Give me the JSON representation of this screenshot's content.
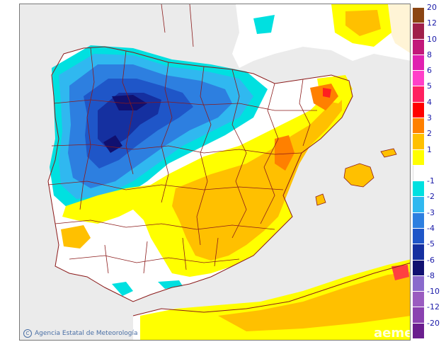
{
  "credit": {
    "text": "Agencia Estatal de Meteorología"
  },
  "watermark": {
    "text": "aemet"
  },
  "legend": {
    "bins": [
      {
        "label": "20",
        "color": "#8b4513"
      },
      {
        "label": "12",
        "color": "#a0204a"
      },
      {
        "label": "10",
        "color": "#c2187a"
      },
      {
        "label": "8",
        "color": "#e020b0"
      },
      {
        "label": "6",
        "color": "#ff40c8"
      },
      {
        "label": "5",
        "color": "#ff2060"
      },
      {
        "label": "4",
        "color": "#ff0000"
      },
      {
        "label": "3",
        "color": "#ff8000"
      },
      {
        "label": "2",
        "color": "#ffc000"
      },
      {
        "label": "1",
        "color": "#ffff00"
      },
      {
        "label": "",
        "color": "#ffffff"
      },
      {
        "label": "-1",
        "color": "#00e0e0"
      },
      {
        "label": "-2",
        "color": "#30b8f0"
      },
      {
        "label": "-3",
        "color": "#2d7fe0"
      },
      {
        "label": "-4",
        "color": "#1f56c8"
      },
      {
        "label": "-5",
        "color": "#1530a0"
      },
      {
        "label": "-6",
        "color": "#101070"
      },
      {
        "label": "-8",
        "color": "#8a6acc"
      },
      {
        "label": "-10",
        "color": "#9a5cc0"
      },
      {
        "label": "-12",
        "color": "#8a42b0"
      },
      {
        "label": "-20",
        "color": "#6a1e8e"
      }
    ]
  },
  "colors": {
    "sea": "#ebebeb",
    "land": "#ffffff",
    "border": "#8b1a1a"
  }
}
